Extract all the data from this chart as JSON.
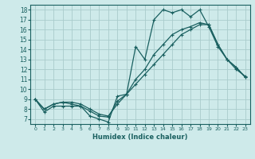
{
  "xlabel": "Humidex (Indice chaleur)",
  "ylabel": "",
  "bg_color": "#ceeaea",
  "grid_color": "#aacccc",
  "line_color": "#1a6060",
  "xlim": [
    -0.5,
    23.5
  ],
  "ylim": [
    6.5,
    18.5
  ],
  "xticks": [
    0,
    1,
    2,
    3,
    4,
    5,
    6,
    7,
    8,
    9,
    10,
    11,
    12,
    13,
    14,
    15,
    16,
    17,
    18,
    19,
    20,
    21,
    22,
    23
  ],
  "yticks": [
    7,
    8,
    9,
    10,
    11,
    12,
    13,
    14,
    15,
    16,
    17,
    18
  ],
  "series": [
    [
      9.0,
      7.7,
      8.3,
      8.3,
      8.3,
      8.3,
      7.3,
      7.0,
      6.7,
      9.3,
      9.5,
      14.3,
      13.0,
      17.0,
      18.0,
      17.7,
      18.0,
      17.3,
      18.0,
      16.3,
      14.3,
      13.0,
      12.0,
      11.3
    ],
    [
      9.0,
      8.0,
      8.5,
      8.7,
      8.5,
      8.3,
      7.8,
      7.3,
      7.2,
      8.8,
      9.5,
      11.0,
      12.0,
      13.5,
      14.5,
      15.5,
      16.0,
      16.3,
      16.7,
      16.5,
      14.5,
      13.0,
      12.2,
      11.2
    ],
    [
      9.0,
      8.0,
      8.5,
      8.7,
      8.7,
      8.5,
      8.0,
      7.5,
      7.3,
      8.5,
      9.5,
      10.5,
      11.5,
      12.5,
      13.5,
      14.5,
      15.5,
      16.0,
      16.5,
      16.5,
      14.5,
      13.0,
      12.2,
      11.2
    ]
  ]
}
